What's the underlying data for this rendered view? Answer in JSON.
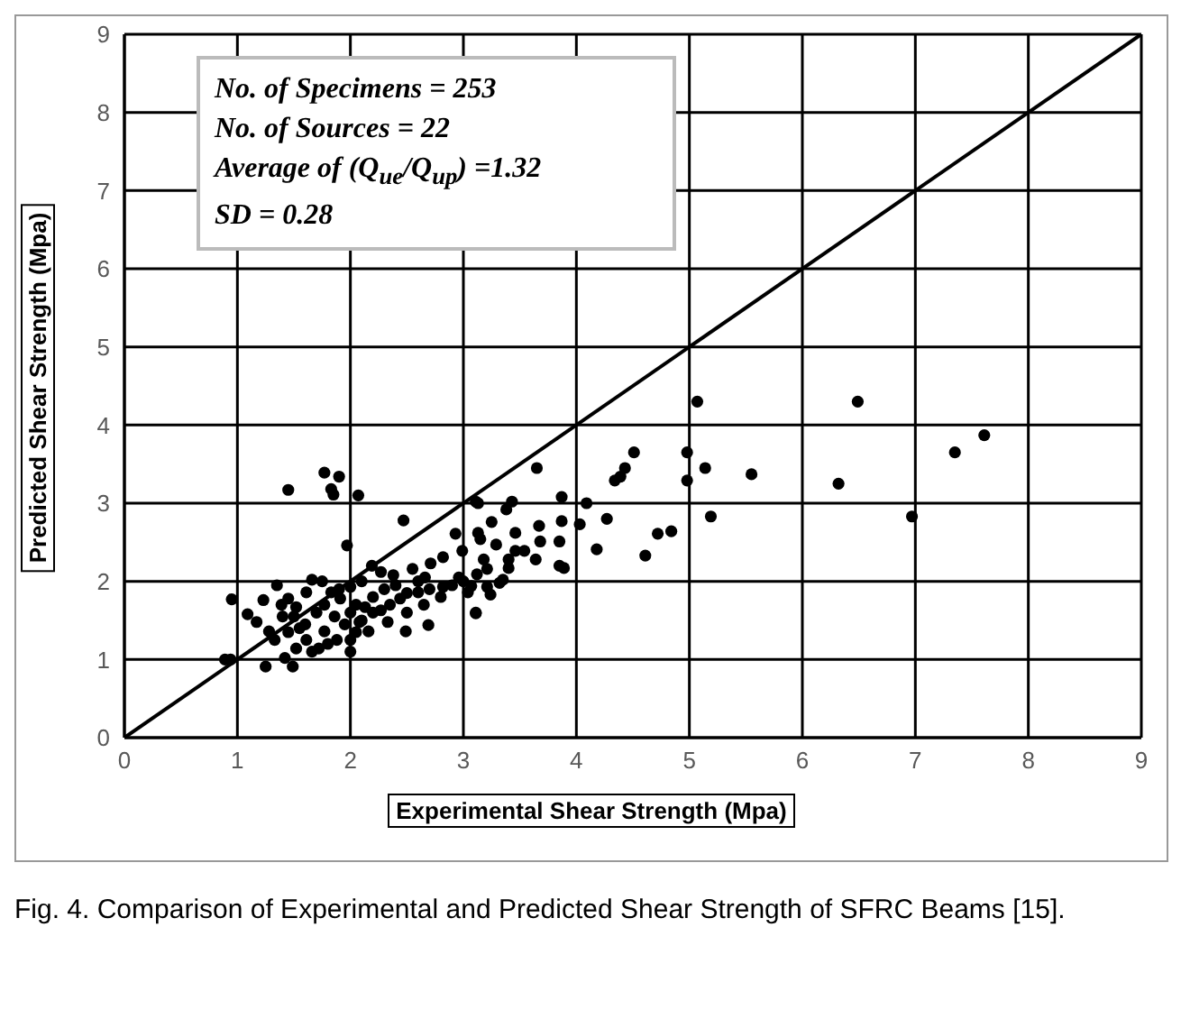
{
  "chart_data": {
    "type": "scatter",
    "xlabel": "Experimental Shear Strength (Mpa)",
    "ylabel": "Predicted Shear Strength (Mpa)",
    "xlim": [
      0,
      9
    ],
    "ylim": [
      0,
      9
    ],
    "xticks": [
      0,
      1,
      2,
      3,
      4,
      5,
      6,
      7,
      8,
      9
    ],
    "yticks": [
      0,
      1,
      2,
      3,
      4,
      5,
      6,
      7,
      8,
      9
    ],
    "grid": true,
    "annotations": [
      "No. of Specimens = 253",
      "No. of Sources = 22",
      "Average of (Q$_{ue}$/Q$_{up}$) =1.32",
      "SD = 0.28",
      "Fig. 4. Comparison of Experimental and Predicted Shear Strength of SFRC Beams [15]."
    ],
    "series": [
      {
        "marker": "circle",
        "color": "#000000",
        "x": [
          1.45,
          1.77,
          1.9,
          1.83,
          1.85,
          2.07,
          2.47,
          1.97,
          3.11,
          0.95,
          0.89,
          0.94,
          1.25,
          1.49,
          1.42,
          1.09,
          1.23,
          1.35,
          1.17,
          1.28,
          1.4,
          1.52,
          1.61,
          1.66,
          1.75,
          1.45,
          1.55,
          1.61,
          1.66,
          1.72,
          1.52,
          1.77,
          1.86,
          1.91,
          2.0,
          2.05,
          2.08,
          2.16,
          2.19,
          2.27,
          2.38,
          2.49,
          2.33,
          2.55,
          2.69,
          2.71,
          2.82,
          2.93,
          2.99,
          3.15,
          3.11,
          2.6,
          2.82,
          3.04,
          2.44,
          2.27,
          1.88,
          2.0,
          2.13,
          1.77,
          1.33,
          1.83,
          1.39,
          2.66,
          2.96,
          3.21,
          3.21,
          1.9,
          2.1,
          2.2,
          2.3,
          2.4,
          2.5,
          2.6,
          2.7,
          2.8,
          2.9,
          3.0,
          2.0,
          2.1,
          2.2,
          2.35,
          1.95,
          2.05,
          2.5,
          2.65,
          1.7,
          1.6,
          1.8,
          2.0,
          1.45,
          1.5,
          5.07,
          4.51,
          4.98,
          5.14,
          5.55,
          6.32,
          4.43,
          4.39,
          4.34,
          4.98,
          3.65,
          3.87,
          4.09,
          3.43,
          3.38,
          3.13,
          5.19,
          4.27,
          4.03,
          3.87,
          3.67,
          3.46,
          3.25,
          3.13,
          4.84,
          4.72,
          4.18,
          4.61,
          3.85,
          3.68,
          3.29,
          3.46,
          3.85,
          3.89,
          3.64,
          3.54,
          3.4,
          3.18,
          3.4,
          3.35,
          3.32,
          3.07,
          3.24,
          3.11,
          3.12,
          6.49,
          7.35,
          7.61,
          6.97
        ],
        "values": [
          3.17,
          3.39,
          3.34,
          3.18,
          3.11,
          3.1,
          2.78,
          2.46,
          3.02,
          1.77,
          1.0,
          1.0,
          0.91,
          0.91,
          1.02,
          1.58,
          1.76,
          1.95,
          1.48,
          1.36,
          1.55,
          1.67,
          1.86,
          2.02,
          2.0,
          1.78,
          1.4,
          1.25,
          1.1,
          1.14,
          1.14,
          1.36,
          1.55,
          1.78,
          1.93,
          1.7,
          1.48,
          1.36,
          2.2,
          2.12,
          2.08,
          1.36,
          1.48,
          2.16,
          1.44,
          2.23,
          2.31,
          2.61,
          2.39,
          2.54,
          1.59,
          1.86,
          1.93,
          1.86,
          1.78,
          1.63,
          1.25,
          1.25,
          1.67,
          1.7,
          1.25,
          1.86,
          1.7,
          2.05,
          2.05,
          1.93,
          2.16,
          1.9,
          2.0,
          1.8,
          1.9,
          1.95,
          1.85,
          2.0,
          1.9,
          1.8,
          1.95,
          2.0,
          1.6,
          1.5,
          1.6,
          1.7,
          1.45,
          1.35,
          1.6,
          1.7,
          1.6,
          1.45,
          1.2,
          1.1,
          1.35,
          1.55,
          4.3,
          3.65,
          3.65,
          3.45,
          3.37,
          3.25,
          3.45,
          3.34,
          3.29,
          3.29,
          3.45,
          3.08,
          3.0,
          3.02,
          2.92,
          3.0,
          2.83,
          2.8,
          2.73,
          2.77,
          2.71,
          2.62,
          2.76,
          2.62,
          2.64,
          2.61,
          2.41,
          2.33,
          2.51,
          2.51,
          2.47,
          2.39,
          2.2,
          2.17,
          2.28,
          2.39,
          2.28,
          2.28,
          2.17,
          2.02,
          1.98,
          1.94,
          1.83,
          1.6,
          2.09,
          4.3,
          3.65,
          3.87,
          2.83
        ]
      },
      {
        "type": "line",
        "color": "#000000",
        "line_style": "solid",
        "x": [
          0,
          9
        ],
        "values": [
          0,
          9
        ]
      }
    ]
  }
}
